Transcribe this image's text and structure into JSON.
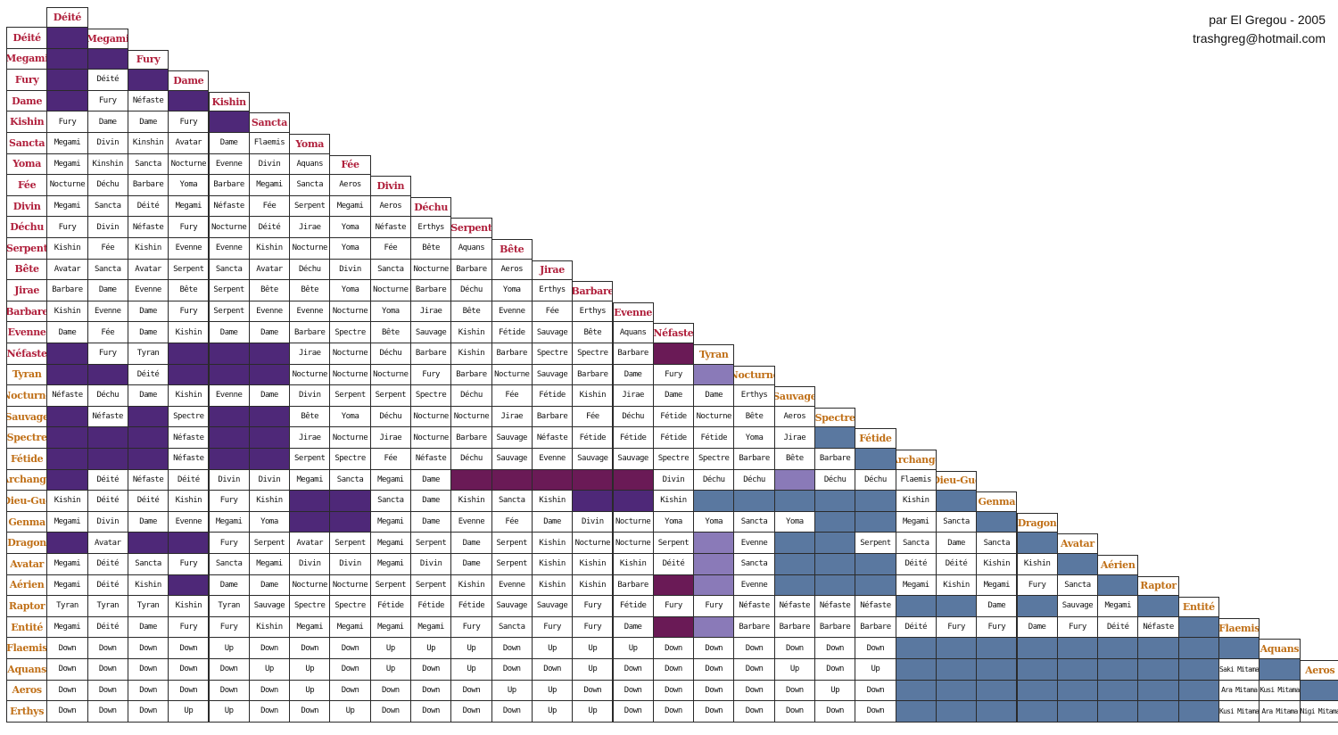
{
  "credit": {
    "author": "par El Gregou - 2005",
    "email": "trashgreg@hotmail.com"
  },
  "colors": {
    "purple": "#4e2878",
    "magenta": "#6a1a56",
    "lavender": "#8a7ab8",
    "steel": "#5a78a0",
    "header_red": "#b0203c",
    "header_orange": "#c07018"
  },
  "races": [
    "Déité",
    "Megami",
    "Fury",
    "Dame",
    "Kishin",
    "Sancta",
    "Yoma",
    "Fée",
    "Divin",
    "Déchu",
    "Serpent",
    "Bête",
    "Jirae",
    "Barbare",
    "Evenne",
    "Néfaste",
    "Tyran",
    "Nocturne",
    "Sauvage",
    "Spectre",
    "Fétide",
    "Archange",
    "Dieu-Gue",
    "Genma",
    "Dragon",
    "Avatar",
    "Aérien",
    "Raptor",
    "Entité",
    "Flaemis",
    "Aquans",
    "Aeros",
    "Erthys"
  ],
  "rows": [
    [
      "P"
    ],
    [
      "P",
      "P"
    ],
    [
      "P",
      "Déité",
      "P"
    ],
    [
      "P",
      "Fury",
      "Néfaste",
      "P"
    ],
    [
      "Fury",
      "Dame",
      "Dame",
      "Fury",
      "P"
    ],
    [
      "Megami",
      "Divin",
      "Kinshin",
      "Avatar",
      "Dame",
      "Flaemis"
    ],
    [
      "Megami",
      "Kinshin",
      "Sancta",
      "Nocturne",
      "Evenne",
      "Divin",
      "Aquans"
    ],
    [
      "Nocturne",
      "Déchu",
      "Barbare",
      "Yoma",
      "Barbare",
      "Megami",
      "Sancta",
      "Aeros"
    ],
    [
      "Megami",
      "Sancta",
      "Déité",
      "Megami",
      "Néfaste",
      "Fée",
      "Serpent",
      "Megami",
      "Aeros"
    ],
    [
      "Fury",
      "Divin",
      "Néfaste",
      "Fury",
      "Nocturne",
      "Déité",
      "Jirae",
      "Yoma",
      "Néfaste",
      "Erthys"
    ],
    [
      "Kishin",
      "Fée",
      "Kishin",
      "Evenne",
      "Evenne",
      "Kishin",
      "Nocturne",
      "Yoma",
      "Fée",
      "Bête",
      "Aquans"
    ],
    [
      "Avatar",
      "Sancta",
      "Avatar",
      "Serpent",
      "Sancta",
      "Avatar",
      "Déchu",
      "Divin",
      "Sancta",
      "Nocturne",
      "Barbare",
      "Aeros"
    ],
    [
      "Barbare",
      "Dame",
      "Evenne",
      "Bête",
      "Serpent",
      "Bête",
      "Bête",
      "Yoma",
      "Nocturne",
      "Barbare",
      "Déchu",
      "Yoma",
      "Erthys"
    ],
    [
      "Kishin",
      "Evenne",
      "Dame",
      "Fury",
      "Serpent",
      "Evenne",
      "Evenne",
      "Nocturne",
      "Yoma",
      "Jirae",
      "Bête",
      "Evenne",
      "Fée",
      "Erthys"
    ],
    [
      "Dame",
      "Fée",
      "Dame",
      "Kishin",
      "Dame",
      "Dame",
      "Barbare",
      "Spectre",
      "Bête",
      "Sauvage",
      "Kishin",
      "Fétide",
      "Sauvage",
      "Bête",
      "Aquans"
    ],
    [
      "P",
      "Fury",
      "Tyran",
      "P",
      "P",
      "P",
      "Jirae",
      "Nocturne",
      "Déchu",
      "Barbare",
      "Kishin",
      "Barbare",
      "Spectre",
      "Spectre",
      "Barbare",
      "M"
    ],
    [
      "P",
      "P",
      "Déité",
      "P",
      "P",
      "P",
      "Nocturne",
      "Nocturne",
      "Nocturne",
      "Fury",
      "Barbare",
      "Nocturne",
      "Sauvage",
      "Barbare",
      "Dame",
      "Fury",
      "L"
    ],
    [
      "Néfaste",
      "Déchu",
      "Dame",
      "Kishin",
      "Evenne",
      "Dame",
      "Divin",
      "Serpent",
      "Serpent",
      "Spectre",
      "Déchu",
      "Fée",
      "Fétide",
      "Kishin",
      "Jirae",
      "Dame",
      "Dame",
      "Erthys"
    ],
    [
      "P",
      "Néfaste",
      "P",
      "Spectre",
      "P",
      "P",
      "Bête",
      "Yoma",
      "Déchu",
      "Nocturne",
      "Nocturne",
      "Jirae",
      "Barbare",
      "Fée",
      "Déchu",
      "Fétide",
      "Nocturne",
      "Bête",
      "Aeros"
    ],
    [
      "P",
      "P",
      "P",
      "Néfaste",
      "P",
      "P",
      "Jirae",
      "Nocturne",
      "Jirae",
      "Nocturne",
      "Barbare",
      "Sauvage",
      "Néfaste",
      "Fétide",
      "Fétide",
      "Fétide",
      "Fétide",
      "Yoma",
      "Jirae",
      "S"
    ],
    [
      "P",
      "P",
      "P",
      "Néfaste",
      "P",
      "P",
      "Serpent",
      "Spectre",
      "Fée",
      "Néfaste",
      "Déchu",
      "Sauvage",
      "Evenne",
      "Sauvage",
      "Sauvage",
      "Spectre",
      "Spectre",
      "Barbare",
      "Bête",
      "Barbare",
      "S"
    ],
    [
      "P",
      "Déité",
      "Néfaste",
      "Déité",
      "Divin",
      "Divin",
      "Megami",
      "Sancta",
      "Megami",
      "Dame",
      "M",
      "M",
      "M",
      "M",
      "M",
      "Divin",
      "Déchu",
      "Déchu",
      "L",
      "Déchu",
      "Déchu",
      "Flaemis"
    ],
    [
      "Kishin",
      "Déité",
      "Déité",
      "Kishin",
      "Fury",
      "Kishin",
      "P",
      "P",
      "Sancta",
      "Dame",
      "Kishin",
      "Sancta",
      "Kishin",
      "P",
      "P",
      "Kishin",
      "S",
      "S",
      "S",
      "S",
      "S",
      "Kishin",
      "S"
    ],
    [
      "Megami",
      "Divin",
      "Dame",
      "Evenne",
      "Megami",
      "Yoma",
      "P",
      "P",
      "Megami",
      "Dame",
      "Evenne",
      "Fée",
      "Dame",
      "Divin",
      "Nocturne",
      "Yoma",
      "Yoma",
      "Sancta",
      "Yoma",
      "S",
      "S",
      "Megami",
      "Sancta",
      "S"
    ],
    [
      "P",
      "Avatar",
      "P",
      "P",
      "Fury",
      "Serpent",
      "Avatar",
      "Serpent",
      "Megami",
      "Serpent",
      "Dame",
      "Serpent",
      "Kishin",
      "Nocturne",
      "Nocturne",
      "Serpent",
      "L",
      "Evenne",
      "S",
      "S",
      "Serpent",
      "Sancta",
      "Dame",
      "Sancta",
      "S"
    ],
    [
      "Megami",
      "Déité",
      "Sancta",
      "Fury",
      "Sancta",
      "Megami",
      "Divin",
      "Divin",
      "Megami",
      "Divin",
      "Dame",
      "Serpent",
      "Kishin",
      "Kishin",
      "Kishin",
      "Déité",
      "L",
      "Sancta",
      "S",
      "S",
      "S",
      "Déité",
      "Déité",
      "Kishin",
      "Kishin",
      "S"
    ],
    [
      "Megami",
      "Déité",
      "Kishin",
      "P",
      "Dame",
      "Dame",
      "Nocturne",
      "Nocturne",
      "Serpent",
      "Serpent",
      "Kishin",
      "Evenne",
      "Kishin",
      "Kishin",
      "Barbare",
      "M",
      "L",
      "Evenne",
      "S",
      "S",
      "S",
      "Megami",
      "Kishin",
      "Megami",
      "Fury",
      "Sancta",
      "S"
    ],
    [
      "Tyran",
      "Tyran",
      "Tyran",
      "Kishin",
      "Tyran",
      "Sauvage",
      "Spectre",
      "Spectre",
      "Fétide",
      "Fétide",
      "Fétide",
      "Sauvage",
      "Sauvage",
      "Fury",
      "Fétide",
      "Fury",
      "Fury",
      "Néfaste",
      "Néfaste",
      "Néfaste",
      "Néfaste",
      "S",
      "S",
      "Dame",
      "S",
      "Sauvage",
      "Megami",
      "S"
    ],
    [
      "Megami",
      "Déité",
      "Dame",
      "Fury",
      "Fury",
      "Kishin",
      "Megami",
      "Megami",
      "Megami",
      "Megami",
      "Fury",
      "Sancta",
      "Fury",
      "Fury",
      "Dame",
      "M",
      "L",
      "Barbare",
      "Barbare",
      "Barbare",
      "Barbare",
      "Déité",
      "Fury",
      "Fury",
      "Dame",
      "Fury",
      "Déité",
      "Néfaste",
      "S"
    ],
    [
      "Down",
      "Down",
      "Down",
      "Down",
      "Up",
      "Down",
      "Down",
      "Down",
      "Up",
      "Up",
      "Up",
      "Down",
      "Up",
      "Up",
      "Up",
      "Down",
      "Down",
      "Down",
      "Down",
      "Down",
      "Down",
      "S",
      "S",
      "S",
      "S",
      "S",
      "S",
      "S",
      "S",
      "S"
    ],
    [
      "Down",
      "Down",
      "Down",
      "Down",
      "Down",
      "Up",
      "Up",
      "Down",
      "Up",
      "Down",
      "Up",
      "Down",
      "Down",
      "Up",
      "Down",
      "Down",
      "Down",
      "Down",
      "Up",
      "Down",
      "Up",
      "S",
      "S",
      "S",
      "S",
      "S",
      "S",
      "S",
      "S",
      "Saki Mitama",
      "S"
    ],
    [
      "Down",
      "Down",
      "Down",
      "Down",
      "Down",
      "Down",
      "Up",
      "Down",
      "Down",
      "Down",
      "Down",
      "Up",
      "Up",
      "Down",
      "Down",
      "Down",
      "Down",
      "Down",
      "Down",
      "Up",
      "Down",
      "S",
      "S",
      "S",
      "S",
      "S",
      "S",
      "S",
      "S",
      "Ara Mitama",
      "Kusi Mitama",
      "S"
    ],
    [
      "Down",
      "Down",
      "Down",
      "Up",
      "Up",
      "Down",
      "Down",
      "Up",
      "Down",
      "Down",
      "Down",
      "Down",
      "Up",
      "Up",
      "Down",
      "Down",
      "Down",
      "Down",
      "Down",
      "Down",
      "Down",
      "S",
      "S",
      "S",
      "S",
      "S",
      "S",
      "S",
      "S",
      "Kusi Mitama",
      "Ara Mitama",
      "Nigi Mitama",
      "S"
    ]
  ]
}
